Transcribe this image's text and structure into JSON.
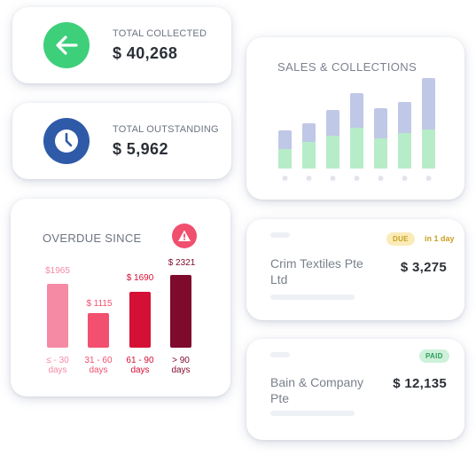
{
  "colors": {
    "green": "#3ecf7a",
    "blue": "#2f5aa8",
    "alert": "#f0506e",
    "due_bg": "#fbebb7",
    "due_text": "#c9a227",
    "paid_bg": "#cdf1da",
    "paid_text": "#2e9e5c",
    "sales_bar_total": "#bfc8e6",
    "sales_bar_collected": "#b7ecc8"
  },
  "collected": {
    "icon": "arrow-left-icon",
    "label": "TOTAL COLLECTED",
    "value": "$ 40,268"
  },
  "outstanding": {
    "icon": "clock-icon",
    "label": "TOTAL OUTSTANDING",
    "value": "$ 5,962"
  },
  "overdue": {
    "title": "OVERDUE SINCE",
    "icon": "warning-icon",
    "buckets": [
      {
        "amount": "$1965",
        "days_line1": "≤ - 30",
        "days_line2": "days",
        "value": 1965,
        "color": "#f58aa4"
      },
      {
        "amount": "$ 1115",
        "days_line1": "31 - 60",
        "days_line2": "days",
        "value": 1115,
        "color": "#f2506e"
      },
      {
        "amount": "$ 1690",
        "days_line1": "61 - 90",
        "days_line2": "days",
        "value": 1690,
        "color": "#d41036"
      },
      {
        "amount": "$ 2321",
        "days_line1": "> 90",
        "days_line2": "days",
        "value": 2321,
        "color": "#7e0a2c"
      }
    ]
  },
  "sales": {
    "title": "SALES & COLLECTIONS",
    "chart_data": {
      "type": "bar",
      "series": [
        {
          "values": [
            43,
            51,
            66,
            85,
            68,
            75,
            102
          ]
        },
        {
          "values": [
            22,
            30,
            37,
            46,
            34,
            40,
            44
          ]
        }
      ]
    }
  },
  "invoices": [
    {
      "name": "Crim Textiles Pte Ltd",
      "amount": "$ 3,275",
      "status": "DUE",
      "note": "in 1 day"
    },
    {
      "name": "Bain & Company Pte",
      "amount": "$ 12,135",
      "status": "PAID"
    }
  ]
}
